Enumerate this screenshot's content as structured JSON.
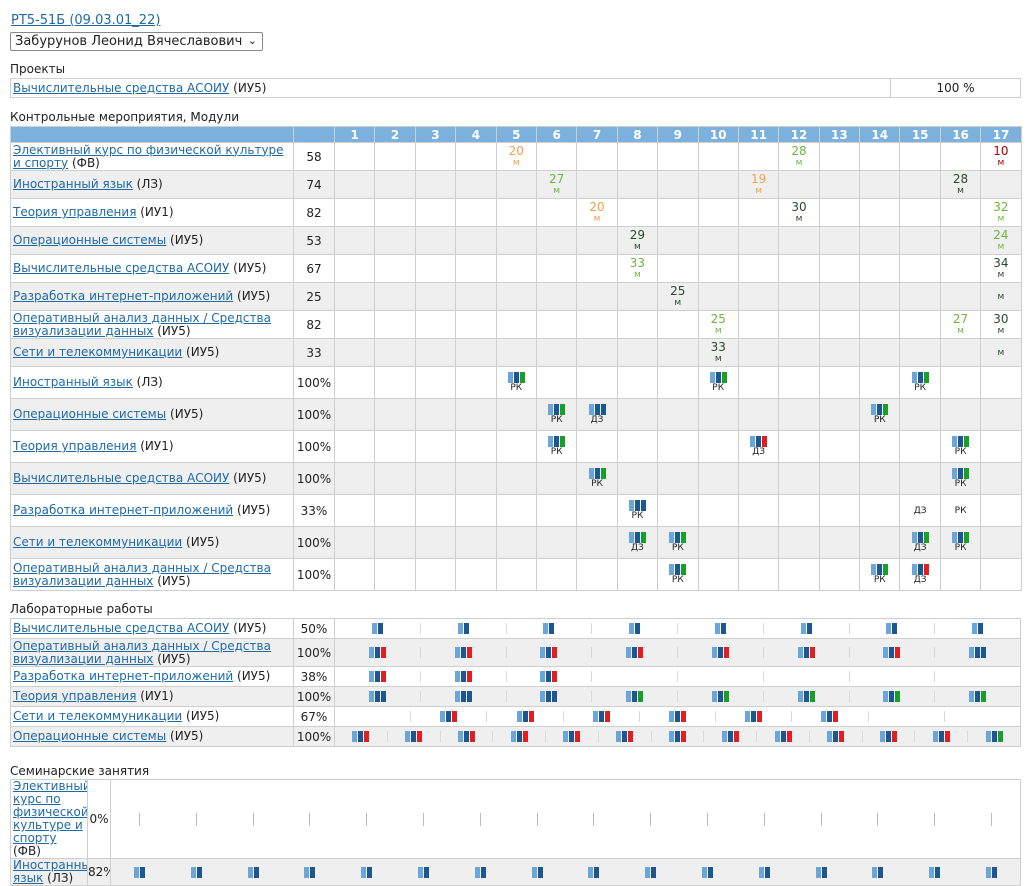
{
  "header": {
    "group_link": "РТ5-51Б (09.03.01_22)",
    "student": "Забурунов Леонид Вячеславович"
  },
  "projects": {
    "title": "Проекты",
    "rows": [
      {
        "name": "Вычислительные средства АСОИУ",
        "dept": "(ИУ5)",
        "value": "100 %"
      }
    ]
  },
  "control": {
    "title": "Контрольные мероприятия, Модули",
    "weeks": [
      "1",
      "2",
      "3",
      "4",
      "5",
      "6",
      "7",
      "8",
      "9",
      "10",
      "11",
      "12",
      "13",
      "14",
      "15",
      "16",
      "17"
    ],
    "score_rows": [
      {
        "name": "Элективный курс по физической культуре и спорту",
        "dept": "(ФВ)",
        "total": "58",
        "cells": {
          "5": {
            "v": "20",
            "m": "м",
            "c": "orange"
          },
          "12": {
            "v": "28",
            "m": "м",
            "c": "green"
          },
          "17": {
            "v": "10",
            "m": "м",
            "c": "red"
          }
        }
      },
      {
        "name": "Иностранный язык",
        "dept": "(ЛЗ)",
        "total": "74",
        "cells": {
          "6": {
            "v": "27",
            "m": "м",
            "c": "green"
          },
          "11": {
            "v": "19",
            "m": "м",
            "c": "orange"
          },
          "16": {
            "v": "28",
            "m": "м",
            "c": "dark"
          }
        }
      },
      {
        "name": "Теория управления",
        "dept": "(ИУ1)",
        "total": "82",
        "cells": {
          "7": {
            "v": "20",
            "m": "м",
            "c": "orange"
          },
          "12": {
            "v": "30",
            "m": "м",
            "c": "dark"
          },
          "17": {
            "v": "32",
            "m": "м",
            "c": "green"
          }
        }
      },
      {
        "name": "Операционные системы",
        "dept": "(ИУ5)",
        "total": "53",
        "cells": {
          "8": {
            "v": "29",
            "m": "м",
            "c": "dark"
          },
          "17": {
            "v": "24",
            "m": "м",
            "c": "green"
          }
        }
      },
      {
        "name": "Вычислительные средства АСОИУ",
        "dept": "(ИУ5)",
        "total": "67",
        "cells": {
          "8": {
            "v": "33",
            "m": "м",
            "c": "green"
          },
          "17": {
            "v": "34",
            "m": "м",
            "c": "dark"
          }
        }
      },
      {
        "name": "Разработка интернет-приложений",
        "dept": "(ИУ5)",
        "total": "25",
        "cells": {
          "9": {
            "v": "25",
            "m": "м",
            "c": "dark"
          },
          "17": {
            "v": "",
            "m": "м",
            "c": "dark"
          }
        }
      },
      {
        "name": "Оперативный анализ данных / Средства визуализации данных",
        "dept": "(ИУ5)",
        "total": "82",
        "cells": {
          "10": {
            "v": "25",
            "m": "м",
            "c": "green"
          },
          "16": {
            "v": "27",
            "m": "м",
            "c": "green"
          },
          "17": {
            "v": "30",
            "m": "м",
            "c": "dark"
          }
        }
      },
      {
        "name": "Сети и телекоммуникации",
        "dept": "(ИУ5)",
        "total": "33",
        "cells": {
          "10": {
            "v": "33",
            "m": "м",
            "c": "dark"
          },
          "17": {
            "v": "",
            "m": "м",
            "c": "dark"
          }
        }
      }
    ],
    "bar_rows": [
      {
        "name": "Иностранный язык",
        "dept": "(ЛЗ)",
        "total": "100%",
        "cells": {
          "5": {
            "bars": [
              "lb",
              "db",
              "gb"
            ],
            "lab": "РК"
          },
          "10": {
            "bars": [
              "lb",
              "db",
              "gb"
            ],
            "lab": "РК"
          },
          "15": {
            "bars": [
              "lb",
              "db",
              "gb"
            ],
            "lab": "РК"
          }
        }
      },
      {
        "name": "Операционные системы",
        "dept": "(ИУ5)",
        "total": "100%",
        "cells": {
          "6": {
            "bars": [
              "lb",
              "db",
              "gb"
            ],
            "lab": "РК"
          },
          "7": {
            "bars": [
              "lb",
              "db",
              "db"
            ],
            "lab": "ДЗ"
          },
          "14": {
            "bars": [
              "lb",
              "db",
              "gb"
            ],
            "lab": "РК"
          }
        }
      },
      {
        "name": "Теория управления",
        "dept": "(ИУ1)",
        "total": "100%",
        "cells": {
          "6": {
            "bars": [
              "lb",
              "db",
              "gb"
            ],
            "lab": "РК"
          },
          "11": {
            "bars": [
              "lb",
              "db",
              "rb"
            ],
            "lab": "ДЗ"
          },
          "16": {
            "bars": [
              "lb",
              "db",
              "gb"
            ],
            "lab": "РК"
          }
        }
      },
      {
        "name": "Вычислительные средства АСОИУ",
        "dept": "(ИУ5)",
        "total": "100%",
        "cells": {
          "7": {
            "bars": [
              "lb",
              "db",
              "gb"
            ],
            "lab": "РК"
          },
          "16": {
            "bars": [
              "lb",
              "db",
              "gb"
            ],
            "lab": "РК"
          }
        }
      },
      {
        "name": "Разработка интернет-приложений",
        "dept": "(ИУ5)",
        "total": "33%",
        "cells": {
          "8": {
            "bars": [
              "lb",
              "db",
              "db"
            ],
            "lab": "РК"
          },
          "15": {
            "bars": [],
            "lab": "ДЗ"
          },
          "16": {
            "bars": [],
            "lab": "РК"
          }
        }
      },
      {
        "name": "Сети и телекоммуникации",
        "dept": "(ИУ5)",
        "total": "100%",
        "cells": {
          "8": {
            "bars": [
              "lb",
              "db",
              "gb"
            ],
            "lab": "ДЗ"
          },
          "9": {
            "bars": [
              "lb",
              "db",
              "gb"
            ],
            "lab": "РК"
          },
          "15": {
            "bars": [
              "lb",
              "db",
              "gb"
            ],
            "lab": "ДЗ"
          },
          "16": {
            "bars": [
              "lb",
              "db",
              "gb"
            ],
            "lab": "РК"
          }
        }
      },
      {
        "name": "Оперативный анализ данных / Средства визуализации данных",
        "dept": "(ИУ5)",
        "total": "100%",
        "cells": {
          "9": {
            "bars": [
              "lb",
              "db",
              "gb"
            ],
            "lab": "РК"
          },
          "14": {
            "bars": [
              "lb",
              "db",
              "gb"
            ],
            "lab": "РК"
          },
          "15": {
            "bars": [
              "lb",
              "db",
              "rb"
            ],
            "lab": "ДЗ"
          }
        }
      }
    ]
  },
  "labs": {
    "title": "Лабораторные работы",
    "rows": [
      {
        "name": "Вычислительные средства АСОИУ",
        "dept": "(ИУ5)",
        "total": "50%",
        "items": [
          [
            "lb",
            "db"
          ],
          [
            "lb",
            "db"
          ],
          [
            "lb",
            "db"
          ],
          [
            "lb",
            "db"
          ],
          [
            "lb",
            "db"
          ],
          [
            "lb",
            "db"
          ],
          [
            "lb",
            "db"
          ],
          [
            "lb",
            "db"
          ]
        ]
      },
      {
        "name": "Оперативный анализ данных / Средства визуализации данных",
        "dept": "(ИУ5)",
        "total": "100%",
        "items": [
          [
            "lb",
            "db",
            "rb"
          ],
          [
            "lb",
            "db",
            "rb"
          ],
          [
            "lb",
            "db",
            "rb"
          ],
          [
            "lb",
            "db",
            "rb"
          ],
          [
            "lb",
            "db",
            "rb"
          ],
          [
            "lb",
            "db",
            "rb"
          ],
          [
            "lb",
            "db",
            "rb"
          ],
          [
            "lb",
            "db",
            "db"
          ]
        ]
      },
      {
        "name": "Разработка интернет-приложений",
        "dept": "(ИУ5)",
        "total": "38%",
        "items": [
          [
            "lb",
            "db",
            "rb"
          ],
          [
            "lb",
            "db",
            "rb"
          ],
          [
            "lb",
            "db",
            "rb"
          ],
          [],
          [],
          [],
          [],
          []
        ]
      },
      {
        "name": "Теория управления",
        "dept": "(ИУ1)",
        "total": "100%",
        "items": [
          [
            "lb",
            "db",
            "db"
          ],
          [
            "lb",
            "db",
            "db"
          ],
          [
            "lb",
            "db",
            "db"
          ],
          [
            "lb",
            "db",
            "gb"
          ],
          [
            "lb",
            "db",
            "gb"
          ],
          [
            "lb",
            "db",
            "gb"
          ],
          [
            "lb",
            "db",
            "gb"
          ],
          [
            "lb",
            "db",
            "gb"
          ]
        ]
      },
      {
        "name": "Сети и телекоммуникации",
        "dept": "(ИУ5)",
        "total": "67%",
        "items": [
          [],
          [
            "lb",
            "db",
            "rb"
          ],
          [
            "lb",
            "db",
            "rb"
          ],
          [
            "lb",
            "db",
            "rb"
          ],
          [
            "lb",
            "db",
            "rb"
          ],
          [
            "lb",
            "db",
            "rb"
          ],
          [
            "lb",
            "db",
            "rb"
          ],
          [],
          []
        ]
      },
      {
        "name": "Операционные системы",
        "dept": "(ИУ5)",
        "total": "100%",
        "items": [
          [
            "lb",
            "db",
            "rb"
          ],
          [
            "lb",
            "db",
            "rb"
          ],
          [
            "lb",
            "db",
            "rb"
          ],
          [
            "lb",
            "db",
            "rb"
          ],
          [
            "lb",
            "db",
            "rb"
          ],
          [
            "lb",
            "db",
            "rb"
          ],
          [
            "lb",
            "db",
            "rb"
          ],
          [
            "lb",
            "db",
            "rb"
          ],
          [
            "lb",
            "db",
            "rb"
          ],
          [
            "lb",
            "db",
            "rb"
          ],
          [
            "lb",
            "db",
            "rb"
          ],
          [
            "lb",
            "db",
            "rb"
          ],
          [
            "lb",
            "db",
            "gb"
          ]
        ]
      }
    ]
  },
  "seminars": {
    "title": "Семинарские занятия",
    "rows": [
      {
        "name": "Элективный курс по физической культуре и спорту",
        "dept": "(ФВ)",
        "total": "0%",
        "count": 16,
        "filled": false
      },
      {
        "name": "Иностранный язык",
        "dept": "(ЛЗ)",
        "total": "82%",
        "count": 16,
        "filled": true
      }
    ]
  },
  "colors": {
    "header_blue": "#7bb1dc",
    "bar_light": "#6aa6da",
    "bar_dark": "#1d5790",
    "bar_green": "#1a9e2a",
    "bar_red": "#e02020",
    "link": "#1f6aa5"
  }
}
